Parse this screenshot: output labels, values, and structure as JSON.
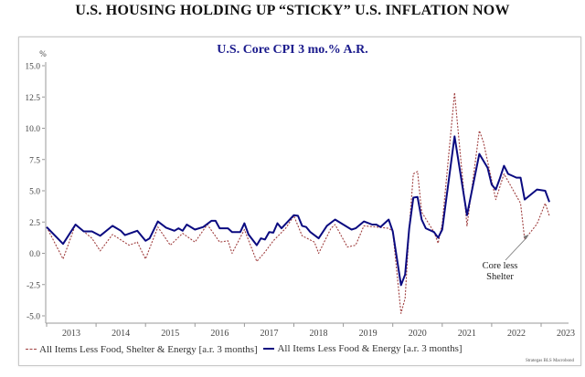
{
  "header": {
    "title": "U.S. HOUSING HOLDING UP “STICKY” U.S. INFLATION NOW"
  },
  "chart_data": {
    "type": "line",
    "title": "U.S. Core CPI 3 mo.% A.R.",
    "ylabel": "%",
    "xlabel": "",
    "ylim": [
      -5.0,
      15.0
    ],
    "yticks": [
      "15.0",
      "12.5",
      "10.0",
      "7.5",
      "5.0",
      "2.5",
      "0.0",
      "-2.5",
      "-5.0"
    ],
    "xlim": [
      "2013-01",
      "2023-12"
    ],
    "xticks": [
      "2013",
      "2014",
      "2015",
      "2016",
      "2017",
      "2018",
      "2019",
      "2020",
      "2021",
      "2022",
      "2023"
    ],
    "grid": false,
    "legend_position": "bottom",
    "annotation": {
      "text": [
        "Core less",
        "Shelter"
      ],
      "points_to": {
        "x": "2022-10",
        "y": 1.5
      }
    },
    "source": "Strategas BLS Macrobond",
    "series": [
      {
        "name": "All Items Less Food, Shelter & Energy [a.r. 3 months]",
        "color": "#a04040",
        "style": "dashed",
        "points": [
          [
            "2013-01",
            2.1
          ],
          [
            "2013-05",
            -0.45
          ],
          [
            "2013-08",
            2.3
          ],
          [
            "2013-12",
            1.2
          ],
          [
            "2014-02",
            0.2
          ],
          [
            "2014-05",
            1.5
          ],
          [
            "2014-09",
            0.65
          ],
          [
            "2014-11",
            0.9
          ],
          [
            "2015-01",
            -0.45
          ],
          [
            "2015-04",
            2.1
          ],
          [
            "2015-07",
            0.65
          ],
          [
            "2015-10",
            1.6
          ],
          [
            "2016-01",
            0.9
          ],
          [
            "2016-04",
            2.3
          ],
          [
            "2016-07",
            0.9
          ],
          [
            "2016-09",
            1.0
          ],
          [
            "2016-10",
            0.0
          ],
          [
            "2017-01",
            1.9
          ],
          [
            "2017-04",
            -0.65
          ],
          [
            "2017-06",
            0.1
          ],
          [
            "2017-08",
            1.0
          ],
          [
            "2017-11",
            2.0
          ],
          [
            "2018-01",
            3.0
          ],
          [
            "2018-03",
            1.4
          ],
          [
            "2018-06",
            0.9
          ],
          [
            "2018-07",
            0.0
          ],
          [
            "2018-10",
            2.0
          ],
          [
            "2018-11",
            2.3
          ],
          [
            "2019-02",
            0.5
          ],
          [
            "2019-04",
            0.65
          ],
          [
            "2019-06",
            2.2
          ],
          [
            "2019-09",
            2.1
          ],
          [
            "2019-12",
            2.0
          ],
          [
            "2020-01",
            1.75
          ],
          [
            "2020-03",
            -4.8
          ],
          [
            "2020-04",
            -3.6
          ],
          [
            "2020-05",
            2.0
          ],
          [
            "2020-06",
            6.35
          ],
          [
            "2020-07",
            6.55
          ],
          [
            "2020-08",
            3.3
          ],
          [
            "2020-11",
            1.7
          ],
          [
            "2020-12",
            0.8
          ],
          [
            "2021-01",
            2.35
          ],
          [
            "2021-04",
            12.85
          ],
          [
            "2021-07",
            2.2
          ],
          [
            "2021-10",
            9.8
          ],
          [
            "2021-11",
            8.9
          ],
          [
            "2022-02",
            4.3
          ],
          [
            "2022-04",
            6.35
          ],
          [
            "2022-08",
            4.0
          ],
          [
            "2022-09",
            1.1
          ],
          [
            "2022-12",
            2.35
          ],
          [
            "2023-02",
            4.0
          ],
          [
            "2023-03",
            3.0
          ]
        ]
      },
      {
        "name": "All Items Less Food & Energy [a.r. 3 months]",
        "color": "#0a0a80",
        "style": "solid",
        "points": [
          [
            "2013-01",
            2.1
          ],
          [
            "2013-05",
            0.75
          ],
          [
            "2013-08",
            2.3
          ],
          [
            "2013-10",
            1.75
          ],
          [
            "2013-12",
            1.75
          ],
          [
            "2014-02",
            1.4
          ],
          [
            "2014-05",
            2.2
          ],
          [
            "2014-07",
            1.8
          ],
          [
            "2014-08",
            1.45
          ],
          [
            "2014-11",
            1.8
          ],
          [
            "2015-01",
            1.0
          ],
          [
            "2015-02",
            1.2
          ],
          [
            "2015-04",
            2.55
          ],
          [
            "2015-06",
            2.05
          ],
          [
            "2015-08",
            1.8
          ],
          [
            "2015-09",
            2.0
          ],
          [
            "2015-10",
            1.8
          ],
          [
            "2015-11",
            2.3
          ],
          [
            "2016-01",
            1.9
          ],
          [
            "2016-03",
            2.1
          ],
          [
            "2016-05",
            2.6
          ],
          [
            "2016-06",
            2.6
          ],
          [
            "2016-07",
            2.0
          ],
          [
            "2016-09",
            2.0
          ],
          [
            "2016-10",
            1.7
          ],
          [
            "2016-12",
            1.7
          ],
          [
            "2017-01",
            2.4
          ],
          [
            "2017-02",
            1.5
          ],
          [
            "2017-04",
            0.65
          ],
          [
            "2017-05",
            1.2
          ],
          [
            "2017-06",
            1.1
          ],
          [
            "2017-07",
            1.7
          ],
          [
            "2017-08",
            1.65
          ],
          [
            "2017-09",
            2.4
          ],
          [
            "2017-10",
            2.0
          ],
          [
            "2018-01",
            3.05
          ],
          [
            "2018-02",
            3.0
          ],
          [
            "2018-03",
            2.2
          ],
          [
            "2018-04",
            2.1
          ],
          [
            "2018-05",
            1.7
          ],
          [
            "2018-07",
            1.2
          ],
          [
            "2018-09",
            2.2
          ],
          [
            "2018-11",
            2.7
          ],
          [
            "2019-03",
            1.9
          ],
          [
            "2019-04",
            2.0
          ],
          [
            "2019-06",
            2.55
          ],
          [
            "2019-08",
            2.3
          ],
          [
            "2019-09",
            2.3
          ],
          [
            "2019-10",
            2.1
          ],
          [
            "2019-12",
            2.7
          ],
          [
            "2020-01",
            1.75
          ],
          [
            "2020-03",
            -2.55
          ],
          [
            "2020-04",
            -1.7
          ],
          [
            "2020-05",
            2.0
          ],
          [
            "2020-06",
            4.45
          ],
          [
            "2020-07",
            4.5
          ],
          [
            "2020-08",
            2.7
          ],
          [
            "2020-09",
            2.0
          ],
          [
            "2020-11",
            1.7
          ],
          [
            "2020-12",
            1.25
          ],
          [
            "2021-01",
            1.9
          ],
          [
            "2021-04",
            9.35
          ],
          [
            "2021-07",
            3.05
          ],
          [
            "2021-10",
            7.95
          ],
          [
            "2021-12",
            6.85
          ],
          [
            "2022-01",
            5.5
          ],
          [
            "2022-02",
            5.1
          ],
          [
            "2022-03",
            6.0
          ],
          [
            "2022-04",
            7.0
          ],
          [
            "2022-05",
            6.35
          ],
          [
            "2022-07",
            6.05
          ],
          [
            "2022-08",
            6.05
          ],
          [
            "2022-09",
            4.3
          ],
          [
            "2022-12",
            5.1
          ],
          [
            "2023-02",
            5.0
          ],
          [
            "2023-03",
            4.1
          ]
        ]
      }
    ]
  }
}
